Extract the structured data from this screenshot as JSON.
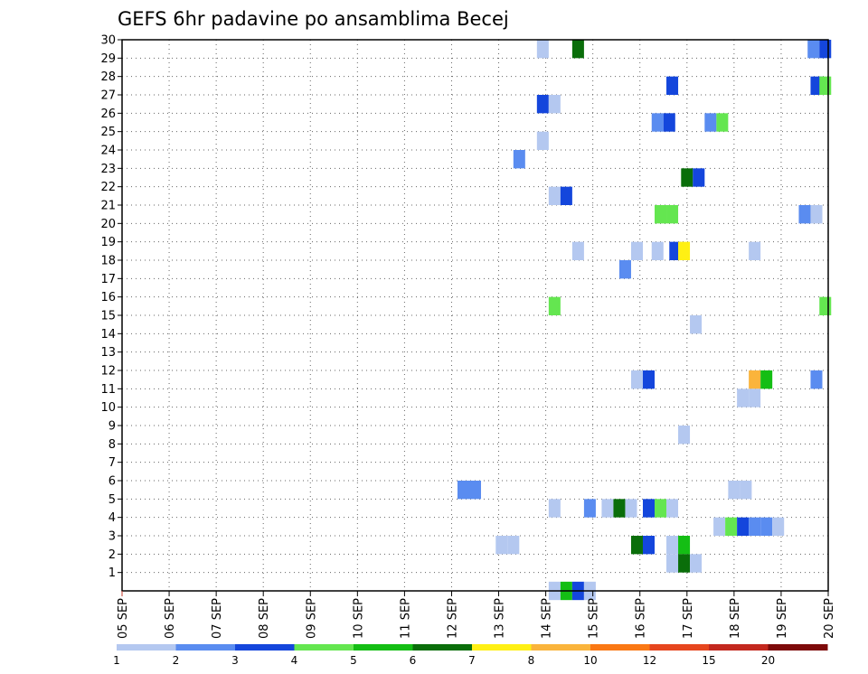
{
  "chart_data": {
    "type": "heatmap",
    "title": "GEFS 6hr padavine po ansamblima Becej",
    "xlabel": "",
    "ylabel": "",
    "x_tick_labels": [
      "05 SEP",
      "06 SEP",
      "07 SEP",
      "08 SEP",
      "09 SEP",
      "10 SEP",
      "11 SEP",
      "12 SEP",
      "13 SEP",
      "14 SEP",
      "15 SEP",
      "16 SEP",
      "17 SEP",
      "18 SEP",
      "19 SEP",
      "20 SEP"
    ],
    "x_unit": "6-hour step (4 steps per day)",
    "xlim": [
      0,
      60
    ],
    "y_tick_labels": [
      "1",
      "2",
      "3",
      "4",
      "5",
      "6",
      "7",
      "8",
      "9",
      "10",
      "11",
      "12",
      "13",
      "14",
      "15",
      "16",
      "17",
      "18",
      "19",
      "20",
      "21",
      "22",
      "23",
      "24",
      "25",
      "26",
      "27",
      "28",
      "29",
      "30"
    ],
    "ylim": [
      0,
      30
    ],
    "grid": true,
    "colorbar": {
      "labels": [
        "1",
        "2",
        "3",
        "4",
        "5",
        "6",
        "7",
        "8",
        "10",
        "12",
        "15",
        "20"
      ],
      "colors": [
        "#b4c8f0",
        "#5a8cf0",
        "#1446dc",
        "#64e650",
        "#14be14",
        "#0a6e0a",
        "#fff014",
        "#fab43c",
        "#fa7814",
        "#e6461e",
        "#c3281e",
        "#7d0a0a"
      ]
    },
    "cells": [
      [
        35.75,
        29.5,
        0
      ],
      [
        38.75,
        29.5,
        5
      ],
      [
        58.75,
        29.5,
        1
      ],
      [
        59.75,
        29.5,
        2
      ],
      [
        46.75,
        27.5,
        2
      ],
      [
        59,
        27.5,
        2
      ],
      [
        59.75,
        27.5,
        3
      ],
      [
        35.75,
        26.5,
        2
      ],
      [
        36.75,
        26.5,
        0
      ],
      [
        45.5,
        25.5,
        1
      ],
      [
        46.5,
        25.5,
        2
      ],
      [
        50,
        25.5,
        1
      ],
      [
        51,
        25.5,
        3
      ],
      [
        35.75,
        24.5,
        0
      ],
      [
        33.75,
        23.5,
        1
      ],
      [
        48,
        22.5,
        5
      ],
      [
        49,
        22.5,
        2
      ],
      [
        36.75,
        21.5,
        0
      ],
      [
        37.75,
        21.5,
        2
      ],
      [
        45.75,
        20.5,
        3
      ],
      [
        46.75,
        20.5,
        3
      ],
      [
        58,
        20.5,
        1
      ],
      [
        59,
        20.5,
        0
      ],
      [
        38.75,
        18.5,
        0
      ],
      [
        43.75,
        18.5,
        0
      ],
      [
        45.5,
        18.5,
        0
      ],
      [
        47,
        18.5,
        2
      ],
      [
        47.75,
        18.5,
        6
      ],
      [
        53.75,
        18.5,
        0
      ],
      [
        42.75,
        17.5,
        1
      ],
      [
        36.75,
        15.5,
        3
      ],
      [
        59.75,
        15.5,
        3
      ],
      [
        48.75,
        14.5,
        0
      ],
      [
        53.75,
        11.5,
        7
      ],
      [
        54.75,
        11.5,
        4
      ],
      [
        43.75,
        11.5,
        0
      ],
      [
        44.75,
        11.5,
        2
      ],
      [
        59,
        11.5,
        1
      ],
      [
        52.75,
        10.5,
        0
      ],
      [
        53.75,
        10.5,
        0
      ],
      [
        47.75,
        8.5,
        0
      ],
      [
        29,
        5.5,
        1
      ],
      [
        30,
        5.5,
        1
      ],
      [
        52,
        5.5,
        0
      ],
      [
        53,
        5.5,
        0
      ],
      [
        36.75,
        4.5,
        0
      ],
      [
        39.75,
        4.5,
        1
      ],
      [
        41.25,
        4.5,
        0
      ],
      [
        42.25,
        4.5,
        5
      ],
      [
        43.25,
        4.5,
        0
      ],
      [
        44.75,
        4.5,
        2
      ],
      [
        45.75,
        4.5,
        3
      ],
      [
        46.75,
        4.5,
        0
      ],
      [
        50.75,
        3.5,
        0
      ],
      [
        51.75,
        3.5,
        3
      ],
      [
        52.75,
        3.5,
        2
      ],
      [
        53.75,
        3.5,
        1
      ],
      [
        54.75,
        3.5,
        1
      ],
      [
        55.75,
        3.5,
        0
      ],
      [
        32.25,
        2.5,
        0
      ],
      [
        33.25,
        2.5,
        0
      ],
      [
        43.75,
        2.5,
        5
      ],
      [
        44.75,
        2.5,
        2
      ],
      [
        46.75,
        2.5,
        0
      ],
      [
        47.75,
        2.5,
        4
      ],
      [
        46.75,
        1.5,
        0
      ],
      [
        47.75,
        1.5,
        5
      ],
      [
        48.75,
        1.5,
        0
      ],
      [
        36.75,
        0,
        0
      ],
      [
        37.75,
        0,
        4
      ],
      [
        38.75,
        0,
        2
      ],
      [
        39.75,
        0,
        0
      ]
    ]
  }
}
